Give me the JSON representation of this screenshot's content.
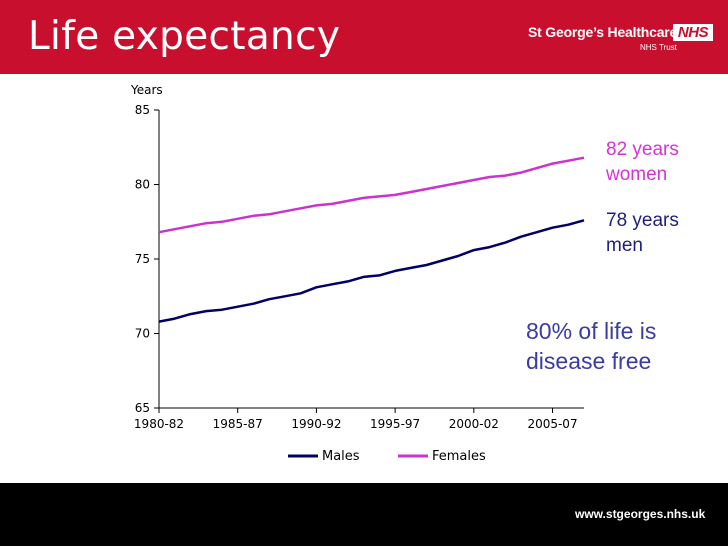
{
  "slide": {
    "title": "Life expectancy",
    "org_name": "St George’s Healthcare",
    "nhs_logo": "NHS",
    "org_sub": "NHS Trust",
    "footer_url": "www.stgeorges.nhs.uk"
  },
  "annotations": {
    "women_line1": "82 years",
    "women_line2": "women",
    "men_line1": "78 years",
    "men_line2": "men",
    "disease_line1": "80% of life is",
    "disease_line2": "disease free"
  },
  "colors": {
    "header": "#c8102e",
    "males": "#000066",
    "females": "#cc33cc",
    "annotation_blue": "#3a3aa8"
  },
  "chart_data": {
    "type": "line",
    "title": "",
    "xlabel": "",
    "ylabel": "Years",
    "ylim": [
      65,
      85
    ],
    "yticks": [
      65,
      70,
      75,
      80,
      85
    ],
    "ytick_labels": [
      "65",
      "70",
      "75",
      "80",
      "85"
    ],
    "x": [
      1981,
      1982,
      1983,
      1984,
      1985,
      1986,
      1987,
      1988,
      1989,
      1990,
      1991,
      1992,
      1993,
      1994,
      1995,
      1996,
      1997,
      1998,
      1999,
      2000,
      2001,
      2002,
      2003,
      2004,
      2005,
      2006,
      2007,
      2008
    ],
    "xlim": [
      1981,
      2008
    ],
    "xticks": [
      1981,
      1986,
      1991,
      1996,
      2001,
      2006
    ],
    "xtick_labels": [
      "1980-82",
      "1985-87",
      "1990-92",
      "1995-97",
      "2000-02",
      "2005-07"
    ],
    "series": [
      {
        "name": "Males",
        "color": "#000066",
        "values": [
          70.8,
          71.0,
          71.3,
          71.5,
          71.6,
          71.8,
          72.0,
          72.3,
          72.5,
          72.7,
          73.1,
          73.3,
          73.5,
          73.8,
          73.9,
          74.2,
          74.4,
          74.6,
          74.9,
          75.2,
          75.6,
          75.8,
          76.1,
          76.5,
          76.8,
          77.1,
          77.3,
          77.6
        ]
      },
      {
        "name": "Females",
        "color": "#cc33cc",
        "values": [
          76.8,
          77.0,
          77.2,
          77.4,
          77.5,
          77.7,
          77.9,
          78.0,
          78.2,
          78.4,
          78.6,
          78.7,
          78.9,
          79.1,
          79.2,
          79.3,
          79.5,
          79.7,
          79.9,
          80.1,
          80.3,
          80.5,
          80.6,
          80.8,
          81.1,
          81.4,
          81.6,
          81.8
        ]
      }
    ],
    "legend_position": "bottom-center"
  }
}
